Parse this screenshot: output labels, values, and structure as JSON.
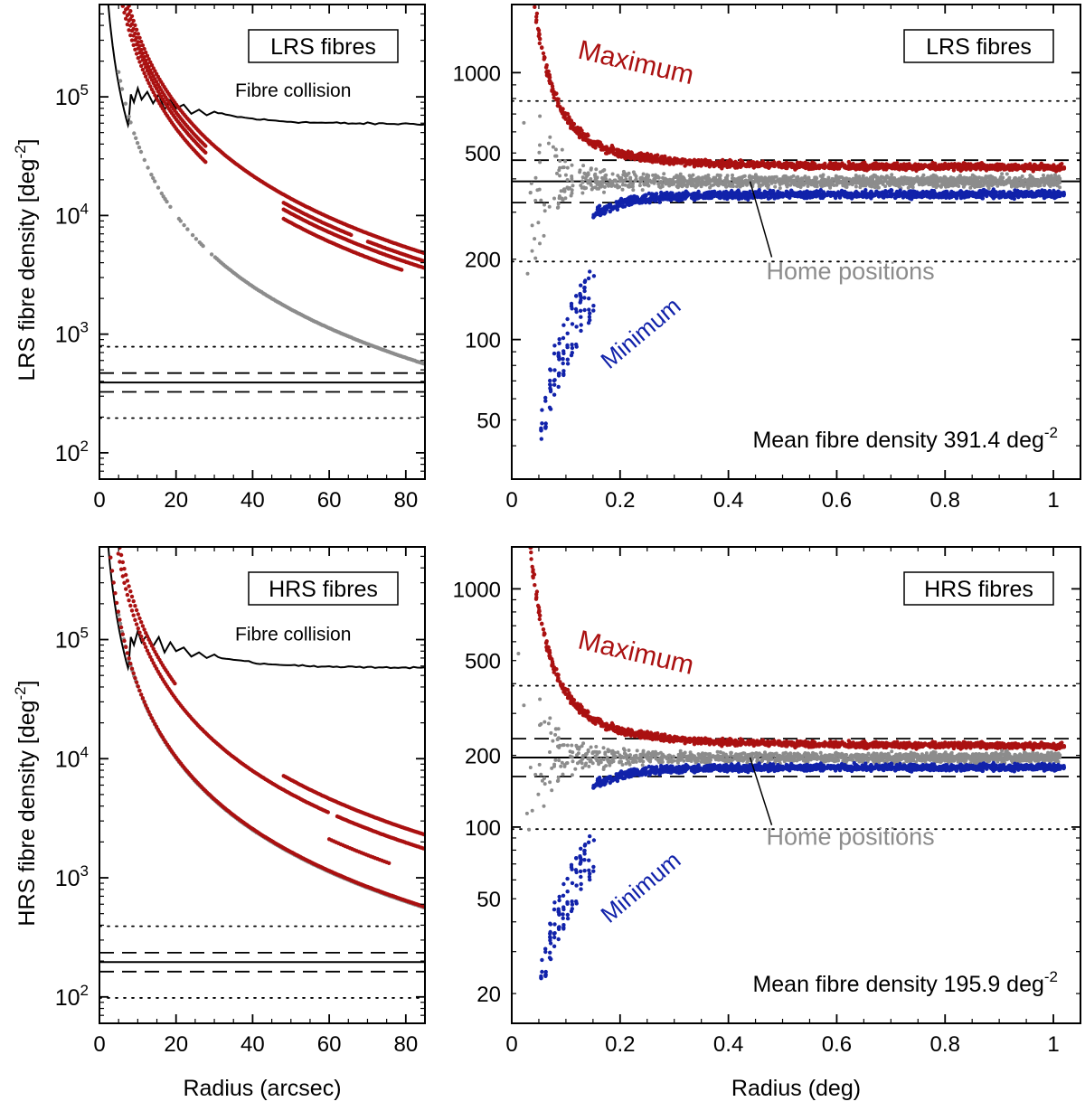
{
  "colors": {
    "maximum": "#aa1111",
    "minimum": "#1122aa",
    "home": "#8c8c8c",
    "collision": "#000000",
    "axis": "#000000"
  },
  "chart_data": [
    {
      "id": "lrs_left",
      "type": "scatter",
      "yscale": "log",
      "box_label": "LRS fibres",
      "xlabel": "",
      "ylabel": "LRS fibre density [deg",
      "ylabel_sup": "-2",
      "ylabel_close": "]",
      "xlim": [
        0,
        85
      ],
      "ylim": [
        60,
        600000
      ],
      "xticks": [
        0,
        20,
        40,
        60,
        80
      ],
      "yticks": [
        {
          "v": 100,
          "base": "10",
          "exp": "2"
        },
        {
          "v": 1000,
          "base": "10",
          "exp": "3"
        },
        {
          "v": 10000,
          "base": "10",
          "exp": "4"
        },
        {
          "v": 100000,
          "base": "10",
          "exp": "5"
        }
      ],
      "collision_label": "Fibre collision",
      "mean": 391.4,
      "dashed": [
        326,
        470
      ],
      "dotted": [
        196,
        783
      ],
      "collision_plateau": 59000,
      "max_curve_ends": [
        4800,
        4100,
        3600,
        3000
      ],
      "home_curve_end": 560
    },
    {
      "id": "lrs_right",
      "type": "scatter",
      "yscale": "log",
      "box_label": "LRS fibres",
      "xlabel": "",
      "ylabel": "",
      "xlim": [
        0,
        1.05
      ],
      "ylim": [
        30,
        1800
      ],
      "xticks": [
        0,
        0.2,
        0.4,
        0.6,
        0.8,
        1
      ],
      "xtick_labels": [
        "0",
        "0.2",
        "0.4",
        "0.6",
        "0.8",
        "1"
      ],
      "yticks": [
        50,
        100,
        200,
        500,
        1000
      ],
      "series": [
        {
          "name": "Maximum",
          "asymptote": 440
        },
        {
          "name": "Minimum",
          "asymptote": 350
        },
        {
          "name": "Home positions",
          "mean": 391.4
        }
      ],
      "mean_text": "Mean fibre density 391.4 deg",
      "mean_sup": "-2",
      "mean": 391.4,
      "dashed": [
        326,
        470
      ],
      "dotted": [
        196,
        783
      ]
    },
    {
      "id": "hrs_left",
      "type": "scatter",
      "yscale": "log",
      "box_label": "HRS fibres",
      "xlabel": "Radius (arcsec)",
      "ylabel": "HRS fibre density [deg",
      "ylabel_sup": "-2",
      "ylabel_close": "]",
      "xlim": [
        0,
        85
      ],
      "ylim": [
        60,
        600000
      ],
      "xticks": [
        0,
        20,
        40,
        60,
        80
      ],
      "yticks": [
        {
          "v": 100,
          "base": "10",
          "exp": "2"
        },
        {
          "v": 1000,
          "base": "10",
          "exp": "3"
        },
        {
          "v": 10000,
          "base": "10",
          "exp": "4"
        },
        {
          "v": 100000,
          "base": "10",
          "exp": "5"
        }
      ],
      "collision_label": "Fibre collision",
      "mean": 195.9,
      "dashed": [
        163,
        235
      ],
      "dotted": [
        98,
        392
      ],
      "collision_plateau": 58000,
      "max_curve_ends": [
        2300,
        1750,
        570
      ],
      "home_curve_end": 560
    },
    {
      "id": "hrs_right",
      "type": "scatter",
      "yscale": "log",
      "box_label": "HRS fibres",
      "xlabel": "Radius (deg)",
      "ylabel": "",
      "xlim": [
        0,
        1.05
      ],
      "ylim": [
        15,
        1500
      ],
      "xticks": [
        0,
        0.2,
        0.4,
        0.6,
        0.8,
        1
      ],
      "xtick_labels": [
        "0",
        "0.2",
        "0.4",
        "0.6",
        "0.8",
        "1"
      ],
      "yticks": [
        20,
        50,
        100,
        200,
        500,
        1000
      ],
      "series": [
        {
          "name": "Maximum",
          "asymptote": 218
        },
        {
          "name": "Minimum",
          "asymptote": 178
        },
        {
          "name": "Home positions",
          "mean": 195.9
        }
      ],
      "mean_text": "Mean fibre density 195.9 deg",
      "mean_sup": "-2",
      "mean": 195.9,
      "dashed": [
        163,
        235
      ],
      "dotted": [
        98,
        392
      ]
    }
  ]
}
